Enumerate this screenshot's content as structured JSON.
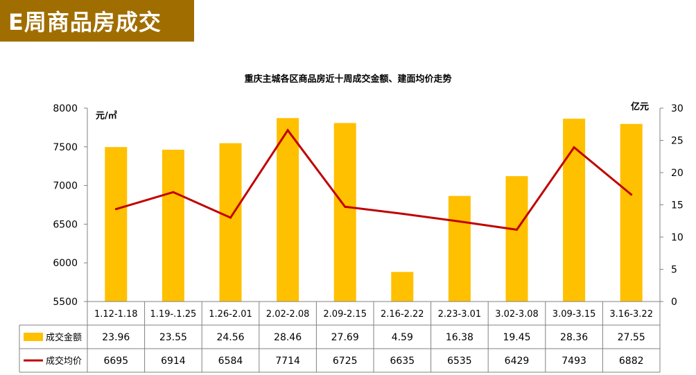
{
  "banner": {
    "title": "E周商品房成交"
  },
  "chart_data": {
    "type": "bar",
    "title": "重庆主城各区商品房近十周成交金额、建面均价走势",
    "left_axis_unit": "元/㎡",
    "right_axis_unit": "亿元",
    "left_ylim": [
      5500,
      8000
    ],
    "left_ticks": [
      "5500",
      "6000",
      "6500",
      "7000",
      "7500",
      "8000"
    ],
    "right_ylim": [
      0,
      30
    ],
    "right_ticks": [
      "0",
      "5",
      "10",
      "15",
      "20",
      "25",
      "30"
    ],
    "categories": [
      "1.12-1.18",
      "1.19-.1.25",
      "1.26-2.01",
      "2.02-2.08",
      "2.09-2.15",
      "2.16-2.22",
      "2.23-3.01",
      "3.02-3.08",
      "3.09-3.15",
      "3.16-3.22"
    ],
    "series": [
      {
        "name": "成交金额",
        "type": "bar",
        "axis": "right",
        "color": "#ffc000",
        "values": [
          23.96,
          23.55,
          24.56,
          28.46,
          27.69,
          4.59,
          16.38,
          19.45,
          28.36,
          27.55
        ],
        "labels": [
          "23.96",
          "23.55",
          "24.56",
          "28.46",
          "27.69",
          "4.59",
          "16.38",
          "19.45",
          "28.36",
          "27.55"
        ]
      },
      {
        "name": "成交均价",
        "type": "line",
        "axis": "left",
        "color": "#c00000",
        "values": [
          6695,
          6914,
          6584,
          7714,
          6725,
          6635,
          6535,
          6429,
          7493,
          6882
        ],
        "labels": [
          "6695",
          "6914",
          "6584",
          "7714",
          "6725",
          "6635",
          "6535",
          "6429",
          "7493",
          "6882"
        ]
      }
    ],
    "grid": false,
    "legend": "data-table"
  }
}
